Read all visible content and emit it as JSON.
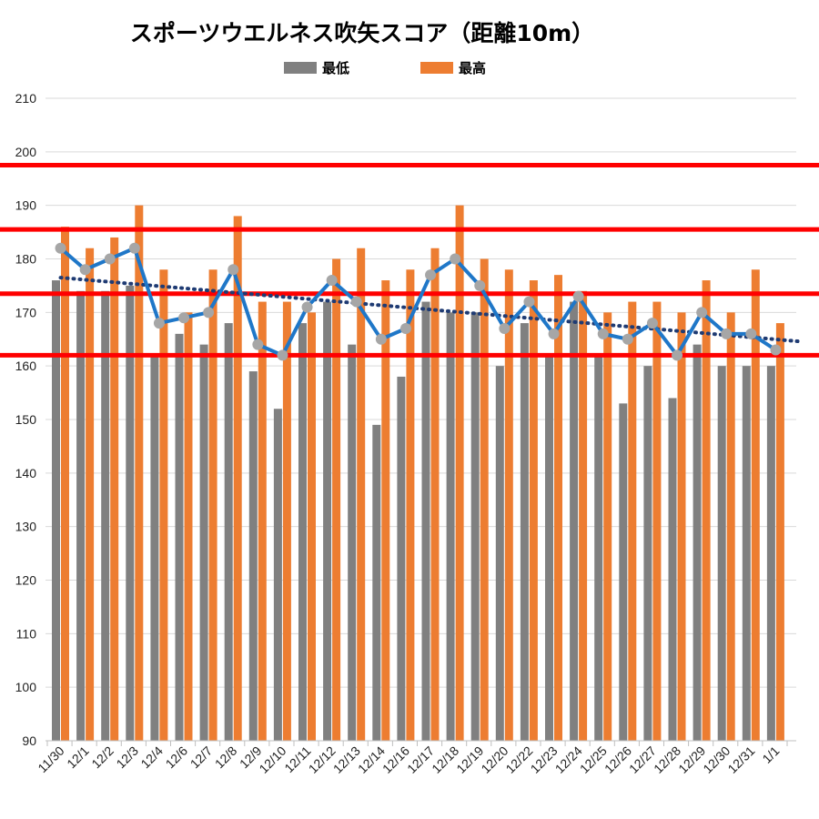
{
  "chart_data": {
    "type": "bar",
    "title": "スポーツウエルネス吹矢スコア（距離10m）",
    "categories": [
      "11/30",
      "12/1",
      "12/2",
      "12/3",
      "12/4",
      "12/6",
      "12/7",
      "12/8",
      "12/9",
      "12/10",
      "12/11",
      "12/12",
      "12/13",
      "12/14",
      "12/16",
      "12/17",
      "12/18",
      "12/19",
      "12/20",
      "12/22",
      "12/23",
      "12/24",
      "12/25",
      "12/26",
      "12/27",
      "12/28",
      "12/29",
      "12/30",
      "12/31",
      "1/1"
    ],
    "series": [
      {
        "name": "最低",
        "color": "#808080",
        "values": [
          176,
          174,
          174,
          175,
          162,
          166,
          164,
          168,
          159,
          152,
          168,
          172,
          164,
          149,
          158,
          172,
          170,
          170,
          160,
          168,
          162,
          172,
          162,
          153,
          160,
          154,
          164,
          160,
          160,
          160
        ]
      },
      {
        "name": "最高",
        "color": "#ed7d31",
        "values": [
          186,
          182,
          184,
          190,
          178,
          170,
          178,
          188,
          172,
          172,
          170,
          180,
          182,
          176,
          178,
          182,
          190,
          180,
          178,
          176,
          177,
          174,
          170,
          172,
          172,
          170,
          176,
          170,
          178,
          168
        ]
      }
    ],
    "line_series": {
      "color": "#1f77c8",
      "marker_color": "#a6a6a6",
      "values": [
        182,
        178,
        180,
        182,
        168,
        169,
        170,
        178,
        164,
        162,
        171,
        176,
        172,
        165,
        167,
        177,
        180,
        175,
        167,
        172,
        166,
        173,
        166,
        165,
        168,
        162,
        170,
        166,
        166,
        163
      ]
    },
    "trendline": {
      "style": "dotted",
      "color": "#1f3b73",
      "start": 176.5,
      "end": 164.6
    },
    "reference_lines": {
      "color": "#ff0000",
      "values": [
        162,
        173.5,
        185.5,
        197.5
      ]
    },
    "yticks": [
      "210",
      "200",
      "190",
      "180",
      "170",
      "160",
      "150",
      "140",
      "130",
      "120",
      "110",
      "100",
      "90"
    ],
    "ylim": [
      90,
      210
    ],
    "grid": true,
    "legend_position": "top"
  }
}
